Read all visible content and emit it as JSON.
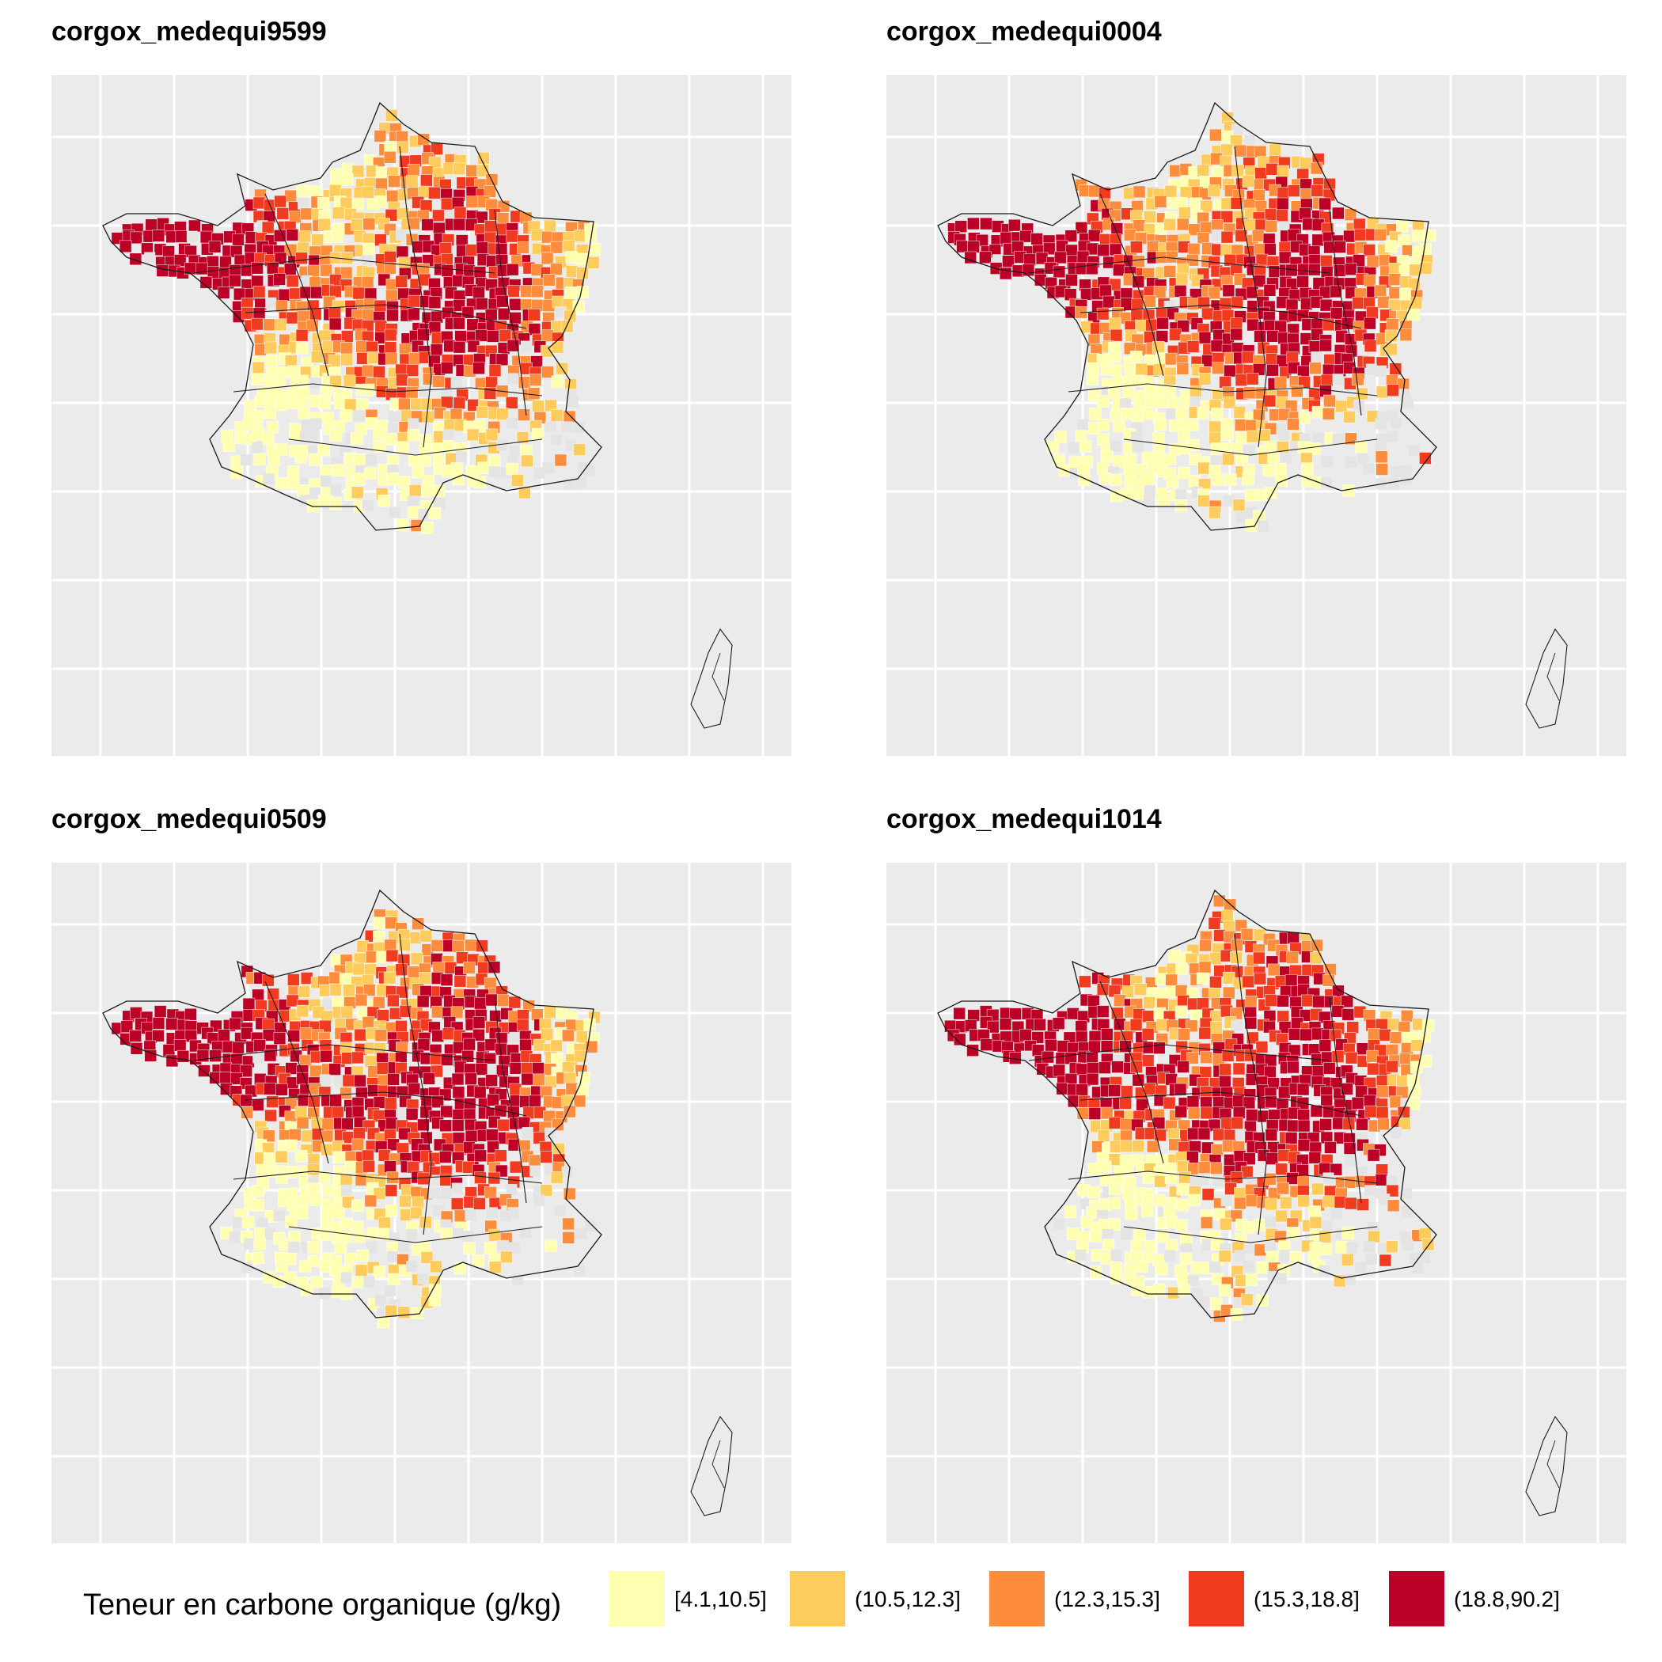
{
  "panels": [
    {
      "title": "corgox_medequi9599"
    },
    {
      "title": "corgox_medequi0004"
    },
    {
      "title": "corgox_medequi0509"
    },
    {
      "title": "corgox_medequi1014"
    }
  ],
  "legend": {
    "title": "Teneur en carbone organique (g/kg)",
    "classes": [
      {
        "label": "[4.1,10.5]",
        "color": "#ffffb2"
      },
      {
        "label": "(10.5,12.3]",
        "color": "#fecc5c"
      },
      {
        "label": "(12.3,15.3]",
        "color": "#fd8d3c"
      },
      {
        "label": "(15.3,18.8]",
        "color": "#f03b20"
      },
      {
        "label": "(18.8,90.2]",
        "color": "#bd0026"
      }
    ]
  },
  "no_data_color": "#e4e4e4",
  "panel_background": "#ebebeb",
  "gridline_color": "#ffffff"
}
